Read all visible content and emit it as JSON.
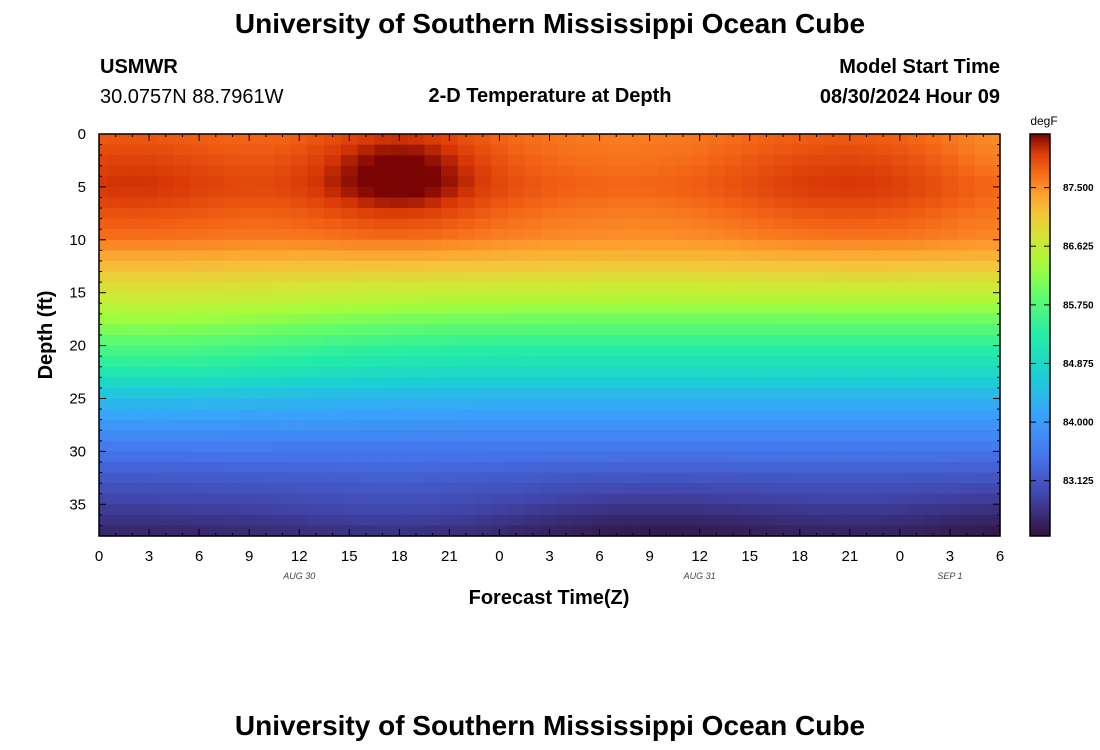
{
  "page": {
    "title": "University of Southern Mississippi Ocean Cube",
    "footer_title": "University of Southern Mississippi Ocean Cube"
  },
  "station": {
    "id": "USMWR",
    "coords": "30.0757N  88.7961W"
  },
  "model": {
    "label": "Model Start Time",
    "value": "08/30/2024 Hour 09"
  },
  "chart_data": {
    "type": "heatmap",
    "title": "2-D Temperature at Depth",
    "xlabel": "Forecast Time(Z)",
    "ylabel": "Depth (ft)",
    "xlim": [
      0,
      54
    ],
    "ylim": [
      0,
      38
    ],
    "x_ticks": [
      0,
      3,
      6,
      9,
      12,
      15,
      18,
      21,
      24,
      27,
      30,
      33,
      36,
      39,
      42,
      45,
      48,
      51,
      54
    ],
    "x_tick_labels": [
      "0",
      "3",
      "6",
      "9",
      "12",
      "15",
      "18",
      "21",
      "0",
      "3",
      "6",
      "9",
      "12",
      "15",
      "18",
      "21",
      "0",
      "3",
      "6"
    ],
    "y_ticks": [
      0,
      5,
      10,
      15,
      20,
      25,
      30,
      35
    ],
    "y_tick_labels": [
      "0",
      "5",
      "10",
      "15",
      "20",
      "25",
      "30",
      "35"
    ],
    "date_labels": [
      {
        "text": "AUG 30",
        "hour": 12
      },
      {
        "text": "AUG 31",
        "hour": 36
      },
      {
        "text": "SEP 1",
        "hour": 51
      }
    ],
    "colorbar": {
      "unit": "degF",
      "min": 82.3,
      "max": 88.3,
      "ticks": [
        83.125,
        84.0,
        84.875,
        85.75,
        86.625,
        87.5
      ],
      "tick_labels": [
        "83.125",
        "84.000",
        "84.875",
        "85.750",
        "86.625",
        "87.500"
      ]
    },
    "temperature_profile": {
      "depths_ft": [
        0,
        5,
        10,
        12.5,
        15,
        17.5,
        20,
        22.5,
        25,
        27.5,
        30,
        32.5,
        35,
        38
      ],
      "degF": [
        87.7,
        87.9,
        87.6,
        87.1,
        86.6,
        86.0,
        85.4,
        84.9,
        84.3,
        83.9,
        83.5,
        83.15,
        82.85,
        82.5
      ]
    },
    "features": [
      {
        "hour": 18,
        "depth": 3.5,
        "delta": 0.55,
        "sx": 3.5,
        "sy": 3.5,
        "note": "warm core"
      },
      {
        "hour": 2,
        "depth": 4,
        "delta": 0.2,
        "sx": 4,
        "sy": 4,
        "note": "warm"
      },
      {
        "hour": 44,
        "depth": 4,
        "delta": 0.2,
        "sx": 5,
        "sy": 4,
        "note": "warm"
      },
      {
        "hour": 33,
        "depth": 5,
        "delta": -0.15,
        "sx": 6,
        "sy": 5,
        "note": "cooler surface"
      },
      {
        "hour": 3,
        "depth": 20,
        "delta": 0.35,
        "sx": 8,
        "sy": 4,
        "note": "warm tongue"
      },
      {
        "hour": 18,
        "depth": 36,
        "delta": 0.15,
        "sx": 6,
        "sy": 3,
        "note": "lighter bottom"
      },
      {
        "hour": 33,
        "depth": 37,
        "delta": -0.15,
        "sx": 6,
        "sy": 3,
        "note": "cold bottom"
      },
      {
        "hour": 54,
        "depth": 37,
        "delta": -0.15,
        "sx": 4,
        "sy": 3,
        "note": "cold bottom"
      },
      {
        "hour": 54,
        "depth": 2,
        "delta": -0.2,
        "sx": 3,
        "sy": 5,
        "note": "cooler corner"
      }
    ],
    "grid": false,
    "legend": "colorbar-right"
  }
}
